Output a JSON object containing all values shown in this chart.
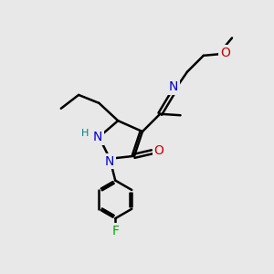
{
  "background_color": "#e8e8e8",
  "atom_colors": {
    "C": "#000000",
    "N": "#0000cc",
    "O": "#cc0000",
    "F": "#00aa00",
    "H": "#008080"
  },
  "bond_color": "#000000",
  "bond_width": 1.8,
  "figsize": [
    3.0,
    3.0
  ],
  "dpi": 100,
  "xlim": [
    0,
    10
  ],
  "ylim": [
    0,
    10
  ]
}
